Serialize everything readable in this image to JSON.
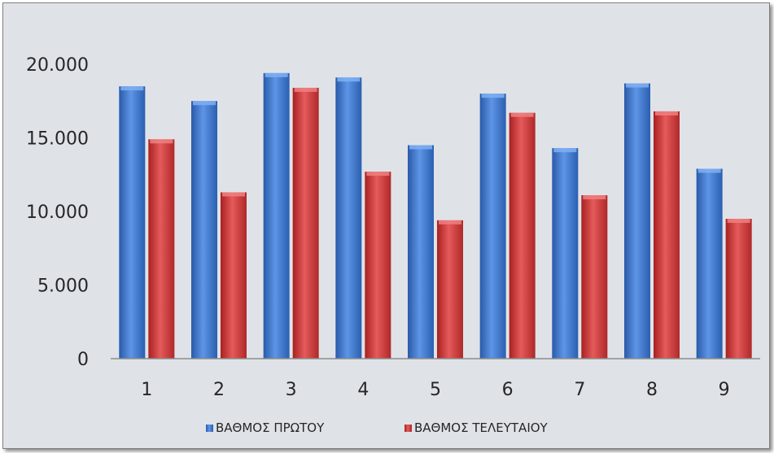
{
  "chart_data": {
    "type": "bar",
    "categories": [
      "1",
      "2",
      "3",
      "4",
      "5",
      "6",
      "7",
      "8",
      "9"
    ],
    "series": [
      {
        "name": "ΒΑΘΜΟΣ ΠΡΩΤΟΥ",
        "color": "#4a7fd0",
        "values": [
          18500,
          17500,
          19400,
          19100,
          14500,
          18000,
          14300,
          18700,
          12900
        ]
      },
      {
        "name": "ΒΑΘΜΟΣ ΤΕΛΕΥΤΑΙΟΥ",
        "color": "#d23f3f",
        "values": [
          14900,
          11300,
          18400,
          12700,
          9400,
          16700,
          11100,
          16800,
          9500
        ]
      }
    ],
    "y_ticks": [
      "0",
      "5.000",
      "10.000",
      "15.000",
      "20.000"
    ],
    "ylim": [
      0,
      20000
    ],
    "grid": false,
    "legend_position": "bottom"
  }
}
